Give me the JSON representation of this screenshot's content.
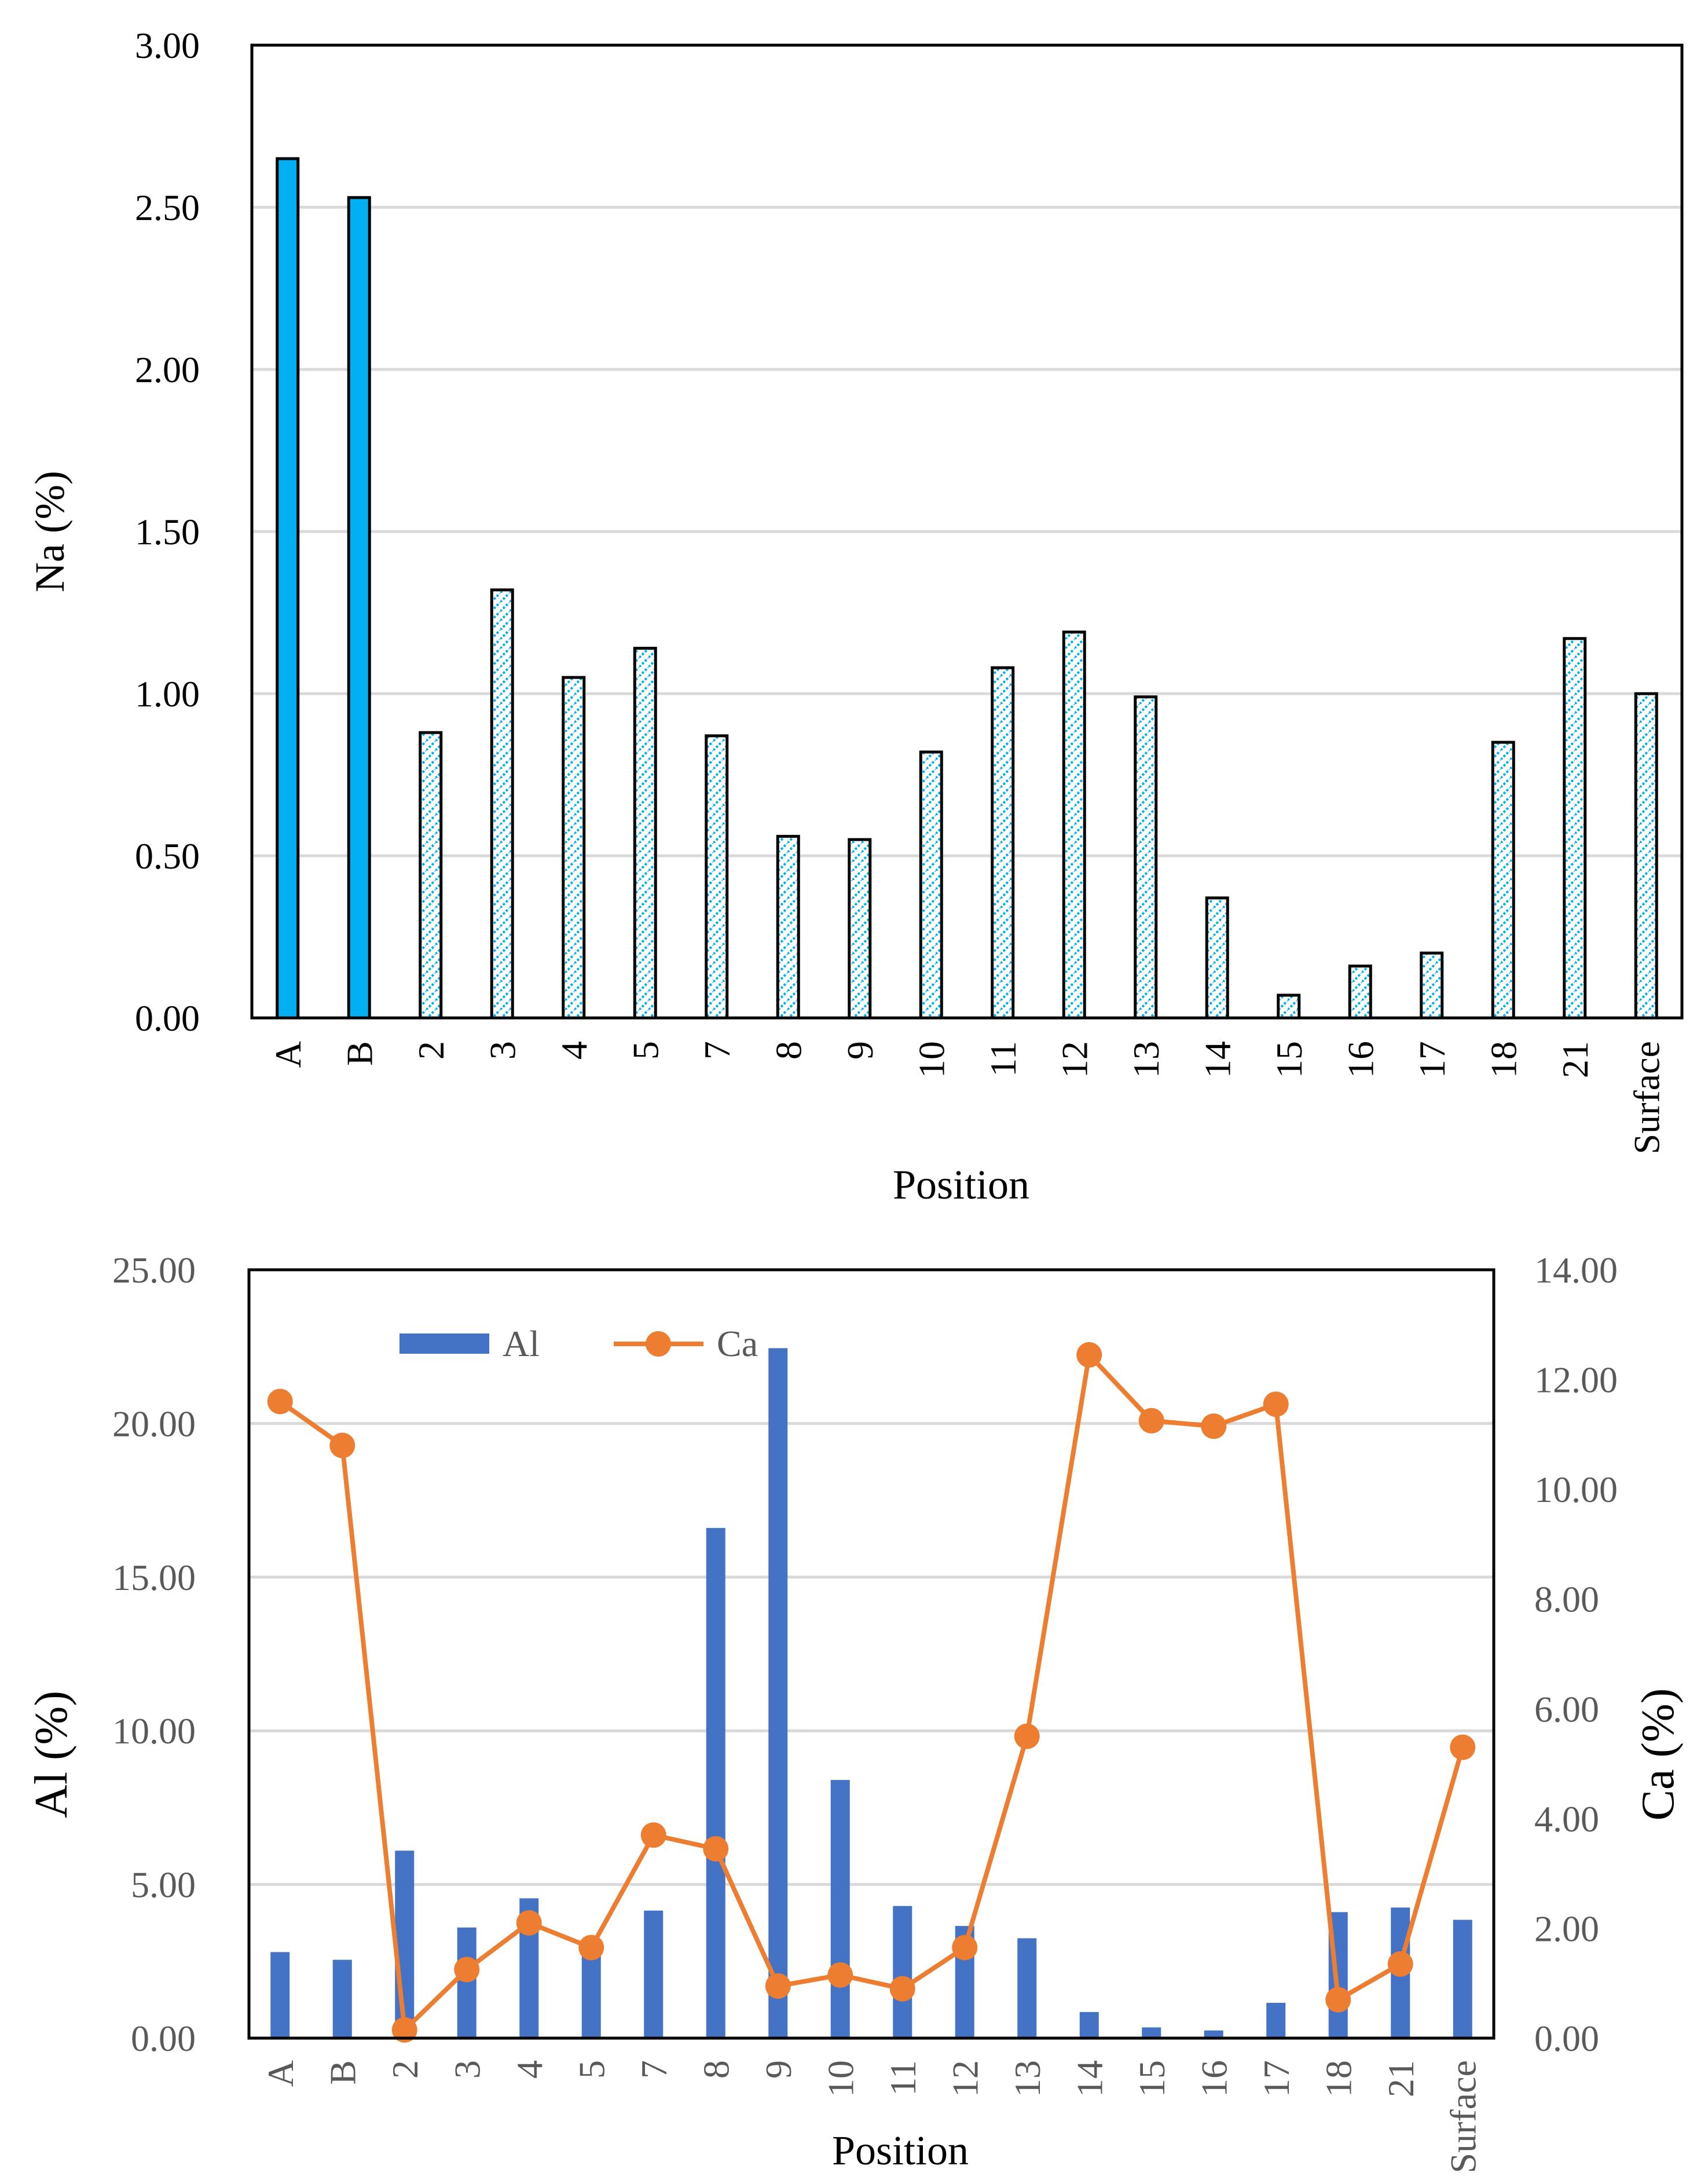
{
  "chart_data": [
    {
      "type": "bar",
      "title": "",
      "xlabel": "Position",
      "ylabel": "Na (%)",
      "ylim": [
        0,
        3
      ],
      "yticks": [
        "0.00",
        "0.50",
        "1.00",
        "1.50",
        "2.00",
        "2.50",
        "3.00"
      ],
      "grid": true,
      "categories": [
        "A",
        "B",
        "2",
        "3",
        "4",
        "5",
        "7",
        "8",
        "9",
        "10",
        "11",
        "12",
        "13",
        "14",
        "15",
        "16",
        "17",
        "18",
        "21",
        "Surface"
      ],
      "values": [
        2.65,
        2.53,
        0.88,
        1.32,
        1.05,
        1.14,
        0.87,
        0.56,
        0.55,
        0.82,
        1.08,
        1.19,
        0.99,
        0.37,
        0.07,
        0.16,
        0.2,
        0.85,
        1.17,
        1.0
      ],
      "colors": {
        "solid": "#00b0f0",
        "pattern": "#00b0f0",
        "outline": "#000000"
      },
      "solid_categories": [
        "A",
        "B"
      ]
    },
    {
      "type": "bar",
      "title": "",
      "xlabel": "Position",
      "ylabel": "Al (%)",
      "y2label": "Ca (%)",
      "ylim": [
        0,
        25
      ],
      "y2lim": [
        0,
        14
      ],
      "yticks": [
        "0.00",
        "5.00",
        "10.00",
        "15.00",
        "20.00",
        "25.00"
      ],
      "y2ticks": [
        "0.00",
        "2.00",
        "4.00",
        "6.00",
        "8.00",
        "10.00",
        "12.00",
        "14.00"
      ],
      "grid": true,
      "legend": "top-left",
      "categories": [
        "A",
        "B",
        "2",
        "3",
        "4",
        "5",
        "7",
        "8",
        "9",
        "10",
        "11",
        "12",
        "13",
        "14",
        "15",
        "16",
        "17",
        "18",
        "21",
        "Surface"
      ],
      "series": [
        {
          "name": "Al",
          "type": "bar",
          "axis": "left",
          "color": "#4472c4",
          "values": [
            2.8,
            2.55,
            6.1,
            3.6,
            4.55,
            2.9,
            4.15,
            16.6,
            22.45,
            8.4,
            4.3,
            3.65,
            3.25,
            0.85,
            0.35,
            0.25,
            1.15,
            4.1,
            4.25,
            3.85
          ]
        },
        {
          "name": "Ca",
          "type": "line",
          "axis": "right",
          "color": "#ed7d31",
          "values": [
            11.6,
            10.8,
            0.15,
            1.25,
            2.1,
            1.65,
            3.7,
            3.45,
            0.95,
            1.15,
            0.9,
            1.65,
            5.5,
            12.45,
            11.25,
            11.15,
            11.55,
            0.7,
            1.35,
            5.3
          ]
        }
      ]
    }
  ]
}
